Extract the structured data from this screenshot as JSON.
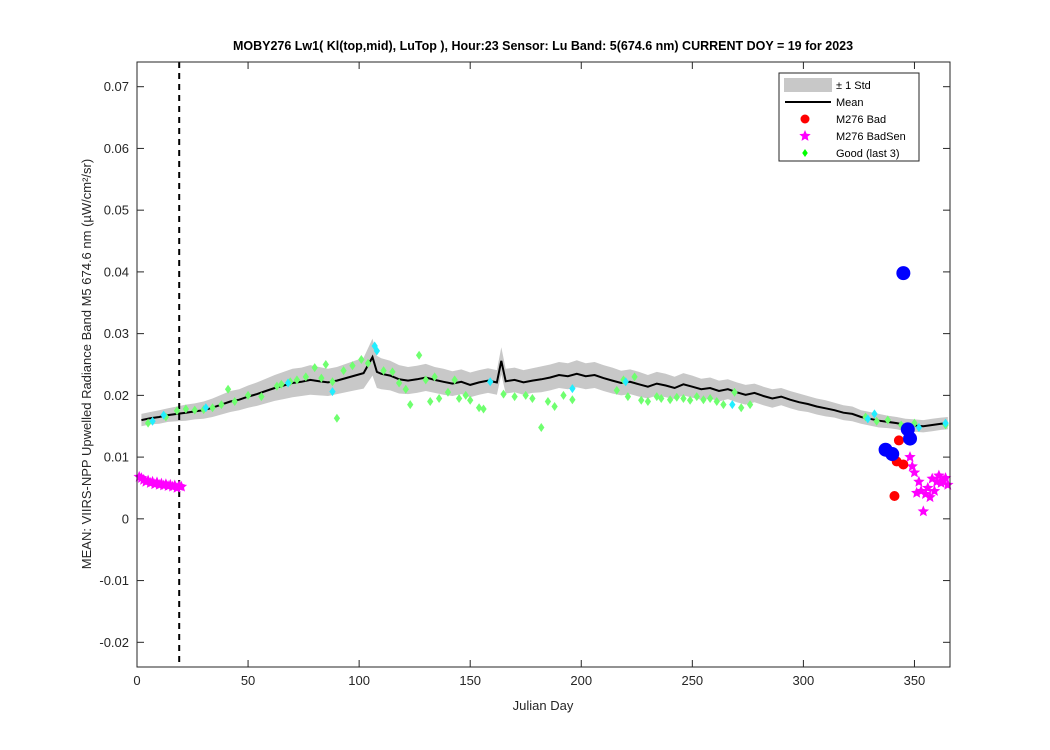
{
  "chart_data": {
    "type": "scatter",
    "title": "MOBY276   Lw1( Kl(top,mid), LuTop ),   Hour:23 Sensor: Lu Band: 5(674.6 nm)   CURRENT DOY = 19 for 2023",
    "xlabel": "Julian Day",
    "ylabel": "MEAN: VIIRS-NPP Upwelled Radiance Band M5 674.6 nm (µW/cm²/sr)",
    "xlim": [
      0,
      366
    ],
    "ylim": [
      -0.024,
      0.074
    ],
    "xticks": [
      0,
      50,
      100,
      150,
      200,
      250,
      300,
      350
    ],
    "yticks": [
      -0.02,
      -0.01,
      0,
      0.01,
      0.02,
      0.03,
      0.04,
      0.05,
      0.06,
      0.07
    ],
    "ytick_labels": [
      "-0.02",
      "-0.01",
      "0",
      "0.01",
      "0.02",
      "0.03",
      "0.04",
      "0.05",
      "0.06",
      "0.07"
    ],
    "current_doy_line": 19,
    "legend_position": "top-right",
    "legend": [
      {
        "label": "± 1 Std",
        "symbol": "band",
        "color": "#c8c8c8"
      },
      {
        "label": "Mean",
        "symbol": "line",
        "color": "#000000"
      },
      {
        "label": "M276 Bad",
        "symbol": "dot",
        "color": "#ff0000"
      },
      {
        "label": "M276 BadSen",
        "symbol": "star",
        "color": "#ff00ff"
      },
      {
        "label": "Good (last 3)",
        "symbol": "diamond",
        "color": "#00ff00"
      }
    ],
    "colors": {
      "std_band": "#c8c8c8",
      "mean": "#000000",
      "bad": "#ff0000",
      "badsen": "#ff00ff",
      "good": "#6fff6f",
      "good_alt": "#22eeff",
      "highlight": "#0000ff"
    },
    "mean_series": {
      "x": [
        2,
        6,
        10,
        14,
        18,
        22,
        26,
        30,
        34,
        38,
        42,
        46,
        50,
        54,
        58,
        62,
        66,
        70,
        74,
        78,
        82,
        86,
        90,
        94,
        98,
        102,
        106,
        108,
        110,
        114,
        118,
        122,
        126,
        130,
        134,
        138,
        142,
        146,
        150,
        154,
        158,
        162,
        164,
        166,
        170,
        174,
        178,
        182,
        186,
        190,
        194,
        198,
        202,
        206,
        210,
        214,
        218,
        222,
        226,
        230,
        234,
        238,
        242,
        246,
        250,
        254,
        258,
        262,
        266,
        270,
        274,
        278,
        282,
        286,
        290,
        294,
        298,
        302,
        306,
        310,
        314,
        318,
        322,
        326,
        330,
        334,
        338,
        342,
        346,
        350,
        354,
        358,
        362,
        365
      ],
      "y": [
        0.016,
        0.0163,
        0.0165,
        0.0168,
        0.017,
        0.0172,
        0.0174,
        0.0176,
        0.018,
        0.0185,
        0.019,
        0.0193,
        0.0198,
        0.0202,
        0.0207,
        0.0212,
        0.0216,
        0.022,
        0.0222,
        0.0225,
        0.0223,
        0.0221,
        0.0224,
        0.0228,
        0.0232,
        0.0236,
        0.0262,
        0.0238,
        0.0235,
        0.0232,
        0.0226,
        0.0224,
        0.0226,
        0.0229,
        0.0225,
        0.0222,
        0.0219,
        0.0222,
        0.0217,
        0.0221,
        0.0224,
        0.0221,
        0.0256,
        0.0223,
        0.0225,
        0.0221,
        0.0224,
        0.0226,
        0.0229,
        0.0233,
        0.0231,
        0.0235,
        0.0231,
        0.0233,
        0.0228,
        0.0224,
        0.022,
        0.0222,
        0.0218,
        0.0214,
        0.0219,
        0.0216,
        0.0212,
        0.0218,
        0.0214,
        0.021,
        0.0212,
        0.0207,
        0.021,
        0.0205,
        0.0201,
        0.0204,
        0.0199,
        0.0195,
        0.0198,
        0.0193,
        0.0189,
        0.0186,
        0.0182,
        0.0179,
        0.0176,
        0.0172,
        0.017,
        0.0165,
        0.0162,
        0.0159,
        0.0157,
        0.0155,
        0.0152,
        0.0151,
        0.015,
        0.0152,
        0.0154,
        0.0155
      ],
      "std": [
        0.001,
        0.001,
        0.0011,
        0.0011,
        0.0012,
        0.0013,
        0.0013,
        0.0014,
        0.0015,
        0.0016,
        0.0017,
        0.0017,
        0.0018,
        0.0019,
        0.002,
        0.0021,
        0.0022,
        0.0023,
        0.0023,
        0.0024,
        0.0023,
        0.0022,
        0.0022,
        0.0023,
        0.0024,
        0.0025,
        0.003,
        0.0026,
        0.0025,
        0.0024,
        0.0023,
        0.0022,
        0.0022,
        0.0022,
        0.0021,
        0.0021,
        0.002,
        0.002,
        0.002,
        0.002,
        0.002,
        0.002,
        0.0022,
        0.002,
        0.002,
        0.002,
        0.002,
        0.0021,
        0.0021,
        0.0021,
        0.0021,
        0.0022,
        0.0021,
        0.0021,
        0.0021,
        0.0021,
        0.002,
        0.002,
        0.002,
        0.0019,
        0.0019,
        0.0019,
        0.0018,
        0.0018,
        0.0018,
        0.0017,
        0.0017,
        0.0017,
        0.0016,
        0.0016,
        0.0016,
        0.0015,
        0.0015,
        0.0015,
        0.0014,
        0.0014,
        0.0014,
        0.0013,
        0.0013,
        0.0013,
        0.0012,
        0.0012,
        0.0012,
        0.0011,
        0.0011,
        0.0011,
        0.001,
        0.001,
        0.001,
        0.001,
        0.001,
        0.001,
        0.001,
        0.001
      ]
    },
    "good_points": [
      [
        5,
        0.0155
      ],
      [
        13,
        0.0165
      ],
      [
        18,
        0.0175
      ],
      [
        22,
        0.0178
      ],
      [
        26,
        0.0176
      ],
      [
        30,
        0.0177
      ],
      [
        34,
        0.018
      ],
      [
        38,
        0.0185
      ],
      [
        41,
        0.021
      ],
      [
        44,
        0.019
      ],
      [
        50,
        0.02
      ],
      [
        56,
        0.0198
      ],
      [
        63,
        0.0215
      ],
      [
        65,
        0.0218
      ],
      [
        69,
        0.0222
      ],
      [
        72,
        0.0225
      ],
      [
        76,
        0.023
      ],
      [
        80,
        0.0245
      ],
      [
        83,
        0.0228
      ],
      [
        85,
        0.025
      ],
      [
        88,
        0.0222
      ],
      [
        90,
        0.0163
      ],
      [
        93,
        0.024
      ],
      [
        97,
        0.0248
      ],
      [
        101,
        0.0258
      ],
      [
        104,
        0.0252
      ],
      [
        111,
        0.024
      ],
      [
        115,
        0.0238
      ],
      [
        118,
        0.022
      ],
      [
        121,
        0.021
      ],
      [
        123,
        0.0185
      ],
      [
        127,
        0.0265
      ],
      [
        130,
        0.0225
      ],
      [
        132,
        0.019
      ],
      [
        134,
        0.023
      ],
      [
        136,
        0.0195
      ],
      [
        140,
        0.0205
      ],
      [
        143,
        0.0225
      ],
      [
        145,
        0.0195
      ],
      [
        148,
        0.02
      ],
      [
        150,
        0.0192
      ],
      [
        154,
        0.018
      ],
      [
        156,
        0.0178
      ],
      [
        165,
        0.0202
      ],
      [
        170,
        0.0198
      ],
      [
        175,
        0.02
      ],
      [
        178,
        0.0195
      ],
      [
        182,
        0.0148
      ],
      [
        185,
        0.019
      ],
      [
        188,
        0.0182
      ],
      [
        192,
        0.02
      ],
      [
        196,
        0.0193
      ],
      [
        216,
        0.0208
      ],
      [
        219,
        0.0225
      ],
      [
        221,
        0.0198
      ],
      [
        224,
        0.023
      ],
      [
        227,
        0.0192
      ],
      [
        230,
        0.019
      ],
      [
        234,
        0.0198
      ],
      [
        236,
        0.0195
      ],
      [
        240,
        0.0193
      ],
      [
        243,
        0.0197
      ],
      [
        246,
        0.0195
      ],
      [
        249,
        0.0192
      ],
      [
        252,
        0.0198
      ],
      [
        255,
        0.0193
      ],
      [
        258,
        0.0195
      ],
      [
        261,
        0.019
      ],
      [
        264,
        0.0185
      ],
      [
        269,
        0.0205
      ],
      [
        272,
        0.018
      ],
      [
        276,
        0.0185
      ],
      [
        328,
        0.0165
      ],
      [
        333,
        0.0158
      ],
      [
        338,
        0.016
      ],
      [
        344,
        0.0152
      ],
      [
        350,
        0.0155
      ],
      [
        364,
        0.0152
      ]
    ],
    "good_alt_points": [
      [
        7,
        0.0158
      ],
      [
        12,
        0.0168
      ],
      [
        31,
        0.018
      ],
      [
        68,
        0.022
      ],
      [
        88,
        0.0206
      ],
      [
        107,
        0.028
      ],
      [
        108,
        0.0272
      ],
      [
        159,
        0.0222
      ],
      [
        196,
        0.0211
      ],
      [
        220,
        0.0222
      ],
      [
        268,
        0.0185
      ],
      [
        329,
        0.0162
      ],
      [
        332,
        0.017
      ],
      [
        352,
        0.0148
      ],
      [
        364,
        0.0155
      ]
    ],
    "bad_points": [
      [
        341,
        0.0037
      ],
      [
        342,
        0.0093
      ],
      [
        343,
        0.0127
      ],
      [
        345,
        0.0088
      ]
    ],
    "badsen_points": [
      [
        1,
        0.0068
      ],
      [
        2,
        0.0066
      ],
      [
        3,
        0.0063
      ],
      [
        4,
        0.006
      ],
      [
        5,
        0.0062
      ],
      [
        6,
        0.0058
      ],
      [
        7,
        0.006
      ],
      [
        8,
        0.0056
      ],
      [
        9,
        0.0059
      ],
      [
        10,
        0.0055
      ],
      [
        11,
        0.0057
      ],
      [
        12,
        0.0054
      ],
      [
        13,
        0.0056
      ],
      [
        14,
        0.0053
      ],
      [
        15,
        0.0055
      ],
      [
        16,
        0.0052
      ],
      [
        17,
        0.0054
      ],
      [
        18,
        0.005
      ],
      [
        19,
        0.0053
      ],
      [
        20,
        0.0052
      ],
      [
        348,
        0.01
      ],
      [
        349,
        0.0085
      ],
      [
        350,
        0.0075
      ],
      [
        351,
        0.0042
      ],
      [
        352,
        0.006
      ],
      [
        353,
        0.0045
      ],
      [
        354,
        0.0012
      ],
      [
        355,
        0.004
      ],
      [
        356,
        0.005
      ],
      [
        357,
        0.0035
      ],
      [
        358,
        0.0065
      ],
      [
        359,
        0.0045
      ],
      [
        360,
        0.006
      ],
      [
        361,
        0.007
      ],
      [
        362,
        0.0058
      ],
      [
        363,
        0.0062
      ],
      [
        364,
        0.0066
      ],
      [
        365,
        0.0055
      ]
    ],
    "highlight_points": [
      [
        337,
        0.0112
      ],
      [
        340,
        0.0105
      ],
      [
        345,
        0.0398
      ],
      [
        347,
        0.0145
      ],
      [
        348,
        0.013
      ]
    ]
  }
}
